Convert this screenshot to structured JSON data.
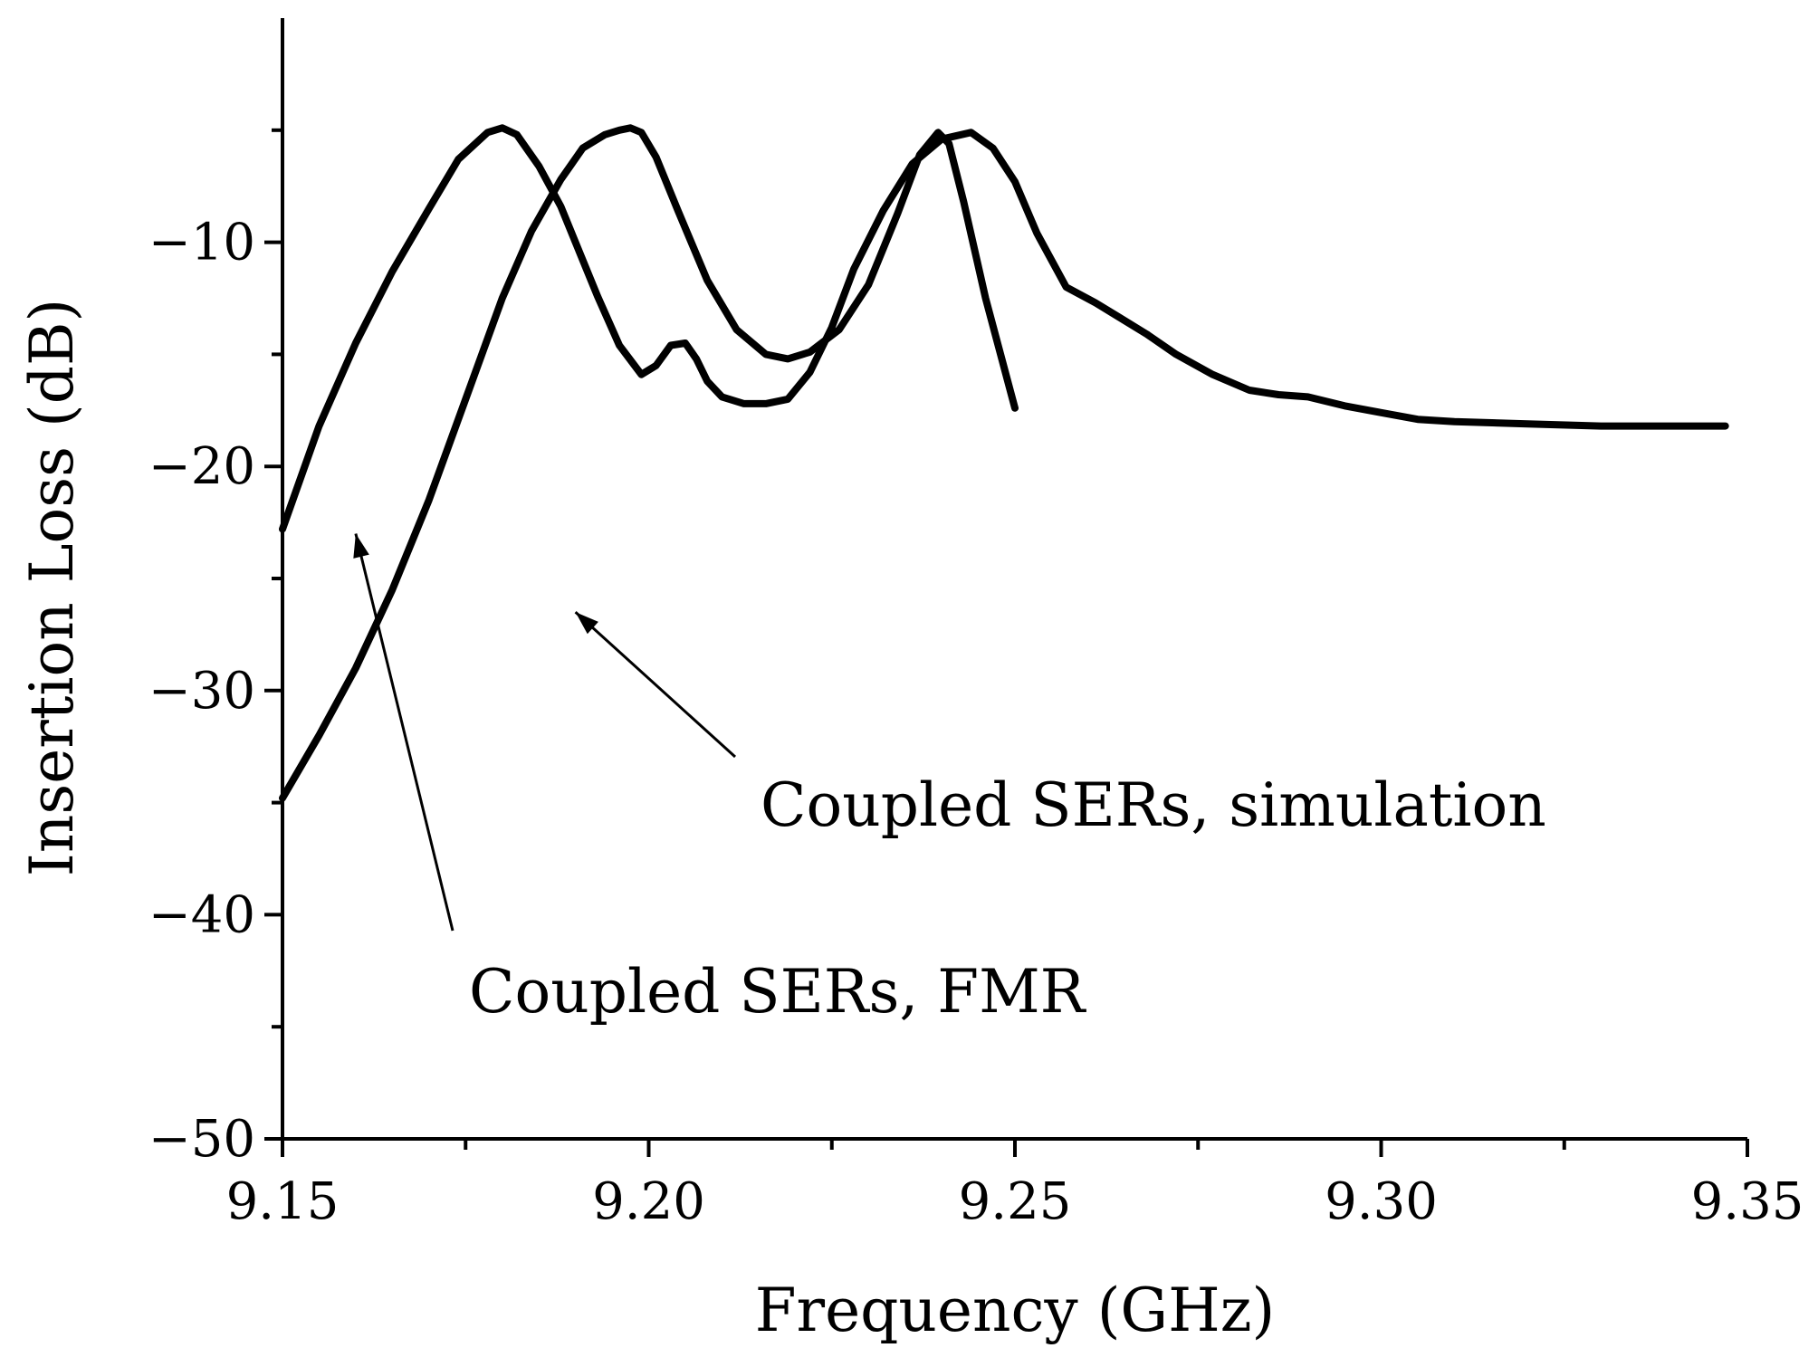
{
  "chart_data": {
    "type": "line",
    "title": "",
    "xlabel": "Frequency (GHz)",
    "ylabel": "Insertion Loss (dB)",
    "xlim": [
      9.15,
      9.35
    ],
    "ylim": [
      -50,
      0
    ],
    "xticks": [
      9.15,
      9.2,
      9.25,
      9.3,
      9.35
    ],
    "xtick_labels": [
      "9.15",
      "9.20",
      "9.25",
      "9.30",
      "9.35"
    ],
    "yticks": [
      -50,
      -40,
      -30,
      -20,
      -10
    ],
    "ytick_labels": [
      "−50",
      "−40",
      "−30",
      "−20",
      "−10"
    ],
    "grid": false,
    "legend": "none",
    "series": [
      {
        "name": "Coupled SERs, FMR",
        "x": [
          9.15,
          9.155,
          9.16,
          9.165,
          9.17,
          9.174,
          9.178,
          9.18,
          9.182,
          9.185,
          9.188,
          9.19,
          9.193,
          9.196,
          9.199,
          9.201,
          9.203,
          9.205,
          9.2065,
          9.208,
          9.21,
          9.213,
          9.216,
          9.219,
          9.222,
          9.225,
          9.228,
          9.232,
          9.236,
          9.24,
          9.244,
          9.247,
          9.25,
          9.253,
          9.257,
          9.261,
          9.264,
          9.268,
          9.272,
          9.277,
          9.282,
          9.286,
          9.29,
          9.295,
          9.3,
          9.305,
          9.31,
          9.32,
          9.33,
          9.347
        ],
        "y": [
          -22.8,
          -18.2,
          -14.5,
          -11.3,
          -8.5,
          -6.3,
          -5.1,
          -4.9,
          -5.2,
          -6.6,
          -8.4,
          -10.0,
          -12.4,
          -14.6,
          -15.9,
          -15.5,
          -14.6,
          -14.5,
          -15.2,
          -16.2,
          -16.9,
          -17.2,
          -17.2,
          -17.0,
          -15.8,
          -13.8,
          -11.2,
          -8.6,
          -6.5,
          -5.4,
          -5.1,
          -5.8,
          -7.3,
          -9.6,
          -12.0,
          -12.7,
          -13.3,
          -14.1,
          -15.0,
          -15.9,
          -16.6,
          -16.8,
          -16.9,
          -17.3,
          -17.6,
          -17.9,
          -18.0,
          -18.1,
          -18.2,
          -18.2
        ]
      },
      {
        "name": "Coupled SERs, simulation",
        "x": [
          9.15,
          9.155,
          9.16,
          9.165,
          9.17,
          9.175,
          9.18,
          9.184,
          9.188,
          9.191,
          9.194,
          9.196,
          9.1975,
          9.199,
          9.201,
          9.204,
          9.208,
          9.212,
          9.216,
          9.219,
          9.222,
          9.226,
          9.23,
          9.234,
          9.237,
          9.2395,
          9.241,
          9.243,
          9.246,
          9.25
        ],
        "y": [
          -34.8,
          -32.0,
          -29.0,
          -25.5,
          -21.5,
          -17.0,
          -12.5,
          -9.5,
          -7.2,
          -5.8,
          -5.2,
          -5.0,
          -4.9,
          -5.1,
          -6.2,
          -8.6,
          -11.7,
          -13.9,
          -15.0,
          -15.2,
          -14.9,
          -13.9,
          -11.9,
          -8.7,
          -6.1,
          -5.1,
          -5.6,
          -8.2,
          -12.5,
          -17.4
        ]
      }
    ],
    "annotations": [
      {
        "text": "Coupled SERs, simulation",
        "arrow_to": [
          9.19,
          -26.5
        ]
      },
      {
        "text": "Coupled SERs, FMR",
        "arrow_to": [
          9.16,
          -23.0
        ]
      }
    ]
  }
}
